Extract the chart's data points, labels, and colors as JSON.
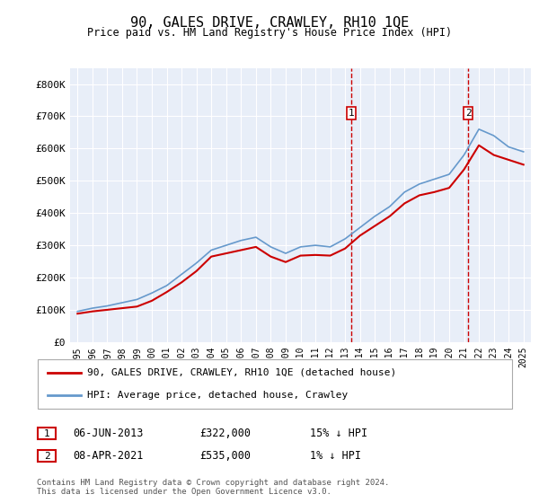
{
  "title": "90, GALES DRIVE, CRAWLEY, RH10 1QE",
  "subtitle": "Price paid vs. HM Land Registry's House Price Index (HPI)",
  "background_color": "#ffffff",
  "plot_background": "#e8eef8",
  "grid_color": "#ffffff",
  "ylim": [
    0,
    850000
  ],
  "yticks": [
    0,
    100000,
    200000,
    300000,
    400000,
    500000,
    600000,
    700000,
    800000
  ],
  "ytick_labels": [
    "£0",
    "£100K",
    "£200K",
    "£300K",
    "£400K",
    "£500K",
    "£600K",
    "£700K",
    "£800K"
  ],
  "years": [
    1995,
    1996,
    1997,
    1998,
    1999,
    2000,
    2001,
    2002,
    2003,
    2004,
    2005,
    2006,
    2007,
    2008,
    2009,
    2010,
    2011,
    2012,
    2013,
    2014,
    2015,
    2016,
    2017,
    2018,
    2019,
    2020,
    2021,
    2022,
    2023,
    2024,
    2025
  ],
  "hpi_values": [
    95000,
    105000,
    112000,
    122000,
    132000,
    152000,
    175000,
    210000,
    245000,
    285000,
    300000,
    315000,
    325000,
    295000,
    275000,
    295000,
    300000,
    295000,
    320000,
    355000,
    390000,
    420000,
    465000,
    490000,
    505000,
    520000,
    580000,
    660000,
    640000,
    605000,
    590000
  ],
  "price_values": [
    88000,
    95000,
    100000,
    105000,
    110000,
    128000,
    155000,
    185000,
    220000,
    265000,
    275000,
    285000,
    295000,
    265000,
    248000,
    268000,
    270000,
    268000,
    290000,
    330000,
    360000,
    390000,
    430000,
    455000,
    465000,
    478000,
    535000,
    610000,
    580000,
    565000,
    550000
  ],
  "sale1_x": 2013.42,
  "sale1_y": 322000,
  "sale1_label": "1",
  "sale2_x": 2021.27,
  "sale2_y": 535000,
  "sale2_label": "2",
  "red_line_color": "#cc0000",
  "blue_line_color": "#6699cc",
  "vline_color": "#cc0000",
  "legend_entries": [
    "90, GALES DRIVE, CRAWLEY, RH10 1QE (detached house)",
    "HPI: Average price, detached house, Crawley"
  ],
  "table_rows": [
    {
      "label": "1",
      "date": "06-JUN-2013",
      "price": "£322,000",
      "hpi": "15% ↓ HPI"
    },
    {
      "label": "2",
      "date": "08-APR-2021",
      "price": "£535,000",
      "hpi": "1% ↓ HPI"
    }
  ],
  "footnote1": "Contains HM Land Registry data © Crown copyright and database right 2024.",
  "footnote2": "This data is licensed under the Open Government Licence v3.0.",
  "xtick_years": [
    1995,
    1996,
    1997,
    1998,
    1999,
    2000,
    2001,
    2002,
    2003,
    2004,
    2005,
    2006,
    2007,
    2008,
    2009,
    2010,
    2011,
    2012,
    2013,
    2014,
    2015,
    2016,
    2017,
    2018,
    2019,
    2020,
    2021,
    2022,
    2023,
    2024,
    2025
  ]
}
